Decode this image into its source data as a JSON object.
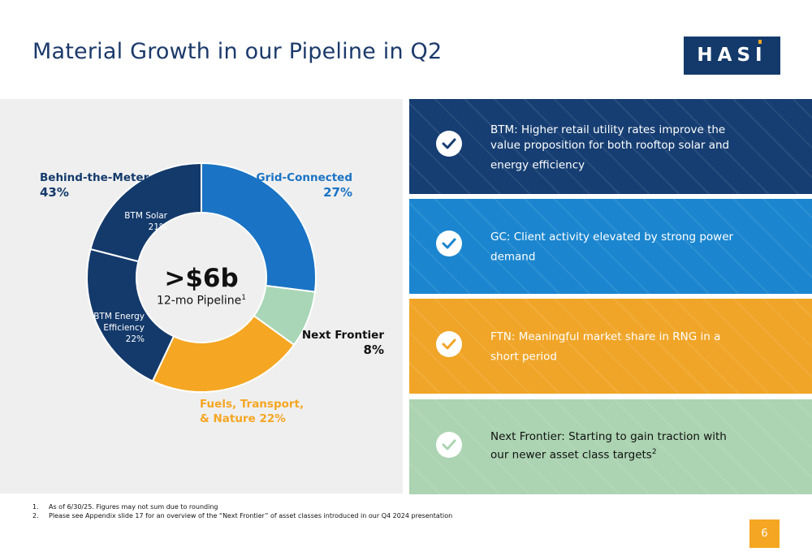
{
  "title": "Material Growth in our Pipeline in Q2",
  "logo_text": "HASI",
  "chart_data": {
    "type": "pie",
    "donut": true,
    "categories": [
      "Grid-Connected",
      "Next Frontier",
      "Fuels, Transport, & Nature",
      "BTM Energy Efficiency",
      "BTM Solar"
    ],
    "values": [
      27,
      8,
      22,
      22,
      21
    ],
    "colors": [
      "#1a73c4",
      "#a8d6b6",
      "#f5a623",
      "#143a6b",
      "#143a6b"
    ],
    "group": {
      "name": "Behind-the-Meter",
      "value": 43,
      "members": [
        "BTM Energy Efficiency",
        "BTM Solar"
      ]
    },
    "labels": {
      "btm_name": "Behind-the-Meter",
      "btm_pct": "43%",
      "gc_name": "Grid-Connected",
      "gc_pct": "27%",
      "nf_name": "Next Frontier",
      "nf_pct": "8%",
      "ftn_line1": "Fuels, Transport,",
      "ftn_line2": "& Nature 22%",
      "btm_solar_name": "BTM Solar",
      "btm_solar_pct": "21%",
      "btm_ee_line1": "BTM Energy",
      "btm_ee_line2": "Efficiency",
      "btm_ee_pct": "22%"
    },
    "center_value": ">$6b",
    "center_label": "12-mo Pipeline",
    "center_sup": "1"
  },
  "cards": [
    {
      "text": "BTM: Higher retail utility rates improve the value proposition for both rooftop solar and energy efficiency",
      "sup": "",
      "color": "#163e72",
      "check_color": "#163e72"
    },
    {
      "text": "GC: Client activity elevated by strong power demand",
      "sup": "",
      "color": "#1b86cf",
      "check_color": "#1b86cf"
    },
    {
      "text": "FTN: Meaningful market share in RNG in a short period",
      "sup": "",
      "color": "#f0a528",
      "check_color": "#f0a528"
    },
    {
      "text": "Next Frontier: Starting to gain traction with our newer asset class targets",
      "sup": "2",
      "color": "#acd4b2",
      "check_color": "#acd4b2"
    }
  ],
  "footnotes": [
    {
      "num": "1.",
      "text": "As of 6/30/25. Figures may not sum due to rounding"
    },
    {
      "num": "2.",
      "text": "Please see Appendix slide 17 for an overview of the “Next Frontier” of asset classes introduced in our Q4 2024 presentation"
    }
  ],
  "page_number": "6"
}
